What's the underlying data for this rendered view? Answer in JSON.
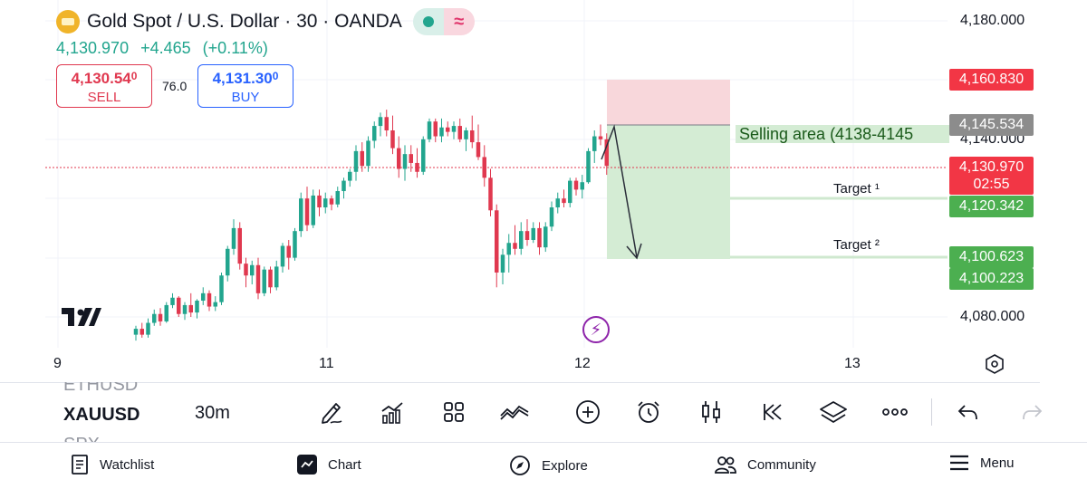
{
  "header": {
    "title": "Gold Spot / U.S. Dollar · 30 · OANDA",
    "last_price": "4,130.970",
    "change": "+4.465",
    "change_pct": "(+0.11%)",
    "market_status_icon": "market-open-dot-icon",
    "session_icon": "extended-hours-icon"
  },
  "trade": {
    "sell_price": "4,130.54",
    "sell_price_small": "0",
    "sell_label": "SELL",
    "spread": "76.0",
    "buy_price": "4,131.30",
    "buy_price_small": "0",
    "buy_label": "BUY"
  },
  "price_axis": {
    "ticks": [
      "4,180.000",
      "4,140.000",
      "4,080.000"
    ],
    "tags": {
      "stop": "4,160.830",
      "entry": "4,145.534",
      "current": "4,130.970",
      "countdown": "02:55",
      "target1": "4,120.342",
      "target2a": "4,100.623",
      "target2b": "4,100.223"
    }
  },
  "time_axis": {
    "ticks": [
      "9",
      "11",
      "12",
      "13"
    ]
  },
  "annotations": {
    "selling_area": "Selling area (4138-4145",
    "target1": "Target ¹",
    "target2": "Target ²"
  },
  "toolbar": {
    "symbol_prev": "ETHUSD",
    "symbol": "XAUUSD",
    "symbol_next": "SPX",
    "interval": "30m",
    "tools": [
      "pencil-icon",
      "indicators-icon",
      "grid-icon",
      "drawing-lines-icon",
      "add-circle-icon",
      "alarm-icon",
      "candles-icon",
      "replay-icon",
      "layers-icon",
      "more-icon",
      "undo-icon",
      "redo-icon"
    ]
  },
  "nav": {
    "watchlist": "Watchlist",
    "chart": "Chart",
    "explore": "Explore",
    "community": "Community",
    "menu": "Menu"
  },
  "colors": {
    "up": "#22a58e",
    "down": "#e0384f",
    "blue": "#2962ff",
    "tp": "#4caf50",
    "sl": "#f8d7db",
    "zone": "#d4ecd4"
  },
  "chart_data": {
    "type": "candlestick",
    "x_ticks": [
      "9",
      "11",
      "12",
      "13"
    ],
    "y_ticks": [
      4180.0,
      4140.0,
      4080.0
    ],
    "current_price": 4130.97,
    "position": {
      "side": "short",
      "entry": 4145.534,
      "stop": 4160.83,
      "target1": 4120.342,
      "target2": 4100.623
    },
    "candles": [
      [
        4074.0,
        4077.0,
        4072.0,
        4076.0
      ],
      [
        4076.0,
        4078.0,
        4073.0,
        4074.0
      ],
      [
        4074.0,
        4079.5,
        4073.0,
        4078.0
      ],
      [
        4078.0,
        4082.5,
        4077.0,
        4081.0
      ],
      [
        4081.0,
        4083.0,
        4077.0,
        4078.5
      ],
      [
        4078.5,
        4085.0,
        4078.0,
        4084.0
      ],
      [
        4084.0,
        4088.0,
        4083.0,
        4086.5
      ],
      [
        4086.5,
        4087.0,
        4080.0,
        4081.0
      ],
      [
        4081.0,
        4085.0,
        4079.0,
        4084.0
      ],
      [
        4084.0,
        4088.0,
        4080.0,
        4081.5
      ],
      [
        4081.5,
        4086.0,
        4079.5,
        4085.5
      ],
      [
        4085.5,
        4090.0,
        4084.0,
        4088.0
      ],
      [
        4088.0,
        4089.0,
        4082.0,
        4083.5
      ],
      [
        4083.5,
        4087.0,
        4082.0,
        4085.0
      ],
      [
        4085.0,
        4095.0,
        4084.0,
        4094.0
      ],
      [
        4094.0,
        4104.0,
        4092.0,
        4103.0
      ],
      [
        4103.0,
        4113.0,
        4101.0,
        4110.0
      ],
      [
        4110.0,
        4112.0,
        4096.0,
        4098.0
      ],
      [
        4098.0,
        4100.0,
        4090.0,
        4094.0
      ],
      [
        4094.0,
        4099.0,
        4091.0,
        4097.5
      ],
      [
        4097.5,
        4100.0,
        4086.0,
        4088.0
      ],
      [
        4088.0,
        4097.0,
        4087.0,
        4096.0
      ],
      [
        4096.0,
        4097.0,
        4088.0,
        4090.0
      ],
      [
        4090.0,
        4099.0,
        4089.0,
        4097.0
      ],
      [
        4097.0,
        4105.0,
        4095.0,
        4104.0
      ],
      [
        4104.0,
        4106.0,
        4096.0,
        4100.0
      ],
      [
        4100.0,
        4110.0,
        4099.0,
        4109.0
      ],
      [
        4109.0,
        4122.0,
        4107.0,
        4120.0
      ],
      [
        4120.0,
        4124.0,
        4109.0,
        4111.0
      ],
      [
        4111.0,
        4123.0,
        4110.0,
        4121.0
      ],
      [
        4121.0,
        4123.0,
        4114.0,
        4117.0
      ],
      [
        4117.0,
        4122.0,
        4115.0,
        4120.0
      ],
      [
        4120.0,
        4121.0,
        4116.0,
        4118.0
      ],
      [
        4118.0,
        4124.0,
        4117.0,
        4122.5
      ],
      [
        4122.5,
        4127.0,
        4120.0,
        4126.0
      ],
      [
        4126.0,
        4130.0,
        4124.0,
        4129.0
      ],
      [
        4129.0,
        4138.0,
        4126.0,
        4136.0
      ],
      [
        4136.0,
        4139.0,
        4129.0,
        4131.0
      ],
      [
        4131.0,
        4141.0,
        4129.0,
        4139.5
      ],
      [
        4139.5,
        4146.0,
        4137.0,
        4144.5
      ],
      [
        4144.5,
        4149.0,
        4141.0,
        4147.5
      ],
      [
        4147.5,
        4150.0,
        4141.0,
        4143.0
      ],
      [
        4143.0,
        4148.0,
        4135.0,
        4137.0
      ],
      [
        4137.0,
        4141.0,
        4127.0,
        4130.0
      ],
      [
        4130.0,
        4138.0,
        4126.0,
        4135.0
      ],
      [
        4135.0,
        4138.0,
        4129.0,
        4132.0
      ],
      [
        4132.0,
        4137.0,
        4127.0,
        4129.0
      ],
      [
        4129.0,
        4141.0,
        4128.0,
        4140.0
      ],
      [
        4140.0,
        4147.0,
        4139.0,
        4146.0
      ],
      [
        4146.0,
        4147.0,
        4139.0,
        4141.0
      ],
      [
        4141.0,
        4147.0,
        4139.0,
        4144.0
      ],
      [
        4144.0,
        4146.0,
        4141.0,
        4142.5
      ],
      [
        4142.5,
        4146.0,
        4140.0,
        4144.5
      ],
      [
        4144.5,
        4147.0,
        4139.0,
        4140.0
      ],
      [
        4140.0,
        4144.0,
        4136.0,
        4143.0
      ],
      [
        4143.0,
        4148.0,
        4137.0,
        4139.0
      ],
      [
        4139.0,
        4145.0,
        4133.0,
        4134.0
      ],
      [
        4134.0,
        4138.0,
        4124.0,
        4127.0
      ],
      [
        4127.0,
        4130.0,
        4114.0,
        4116.0
      ],
      [
        4116.0,
        4118.0,
        4090.0,
        4095.0
      ],
      [
        4095.0,
        4103.0,
        4091.0,
        4101.0
      ],
      [
        4101.0,
        4108.0,
        4095.0,
        4105.0
      ],
      [
        4105.0,
        4111.0,
        4101.0,
        4103.0
      ],
      [
        4103.0,
        4112.0,
        4101.0,
        4109.0
      ],
      [
        4109.0,
        4113.0,
        4104.0,
        4106.0
      ],
      [
        4106.0,
        4112.0,
        4105.0,
        4110.0
      ],
      [
        4110.0,
        4112.0,
        4101.0,
        4103.5
      ],
      [
        4103.5,
        4112.0,
        4102.0,
        4110.5
      ],
      [
        4110.5,
        4119.0,
        4109.0,
        4117.0
      ],
      [
        4117.0,
        4122.0,
        4115.0,
        4120.0
      ],
      [
        4120.0,
        4123.0,
        4117.0,
        4118.5
      ],
      [
        4118.5,
        4127.0,
        4117.0,
        4126.0
      ],
      [
        4126.0,
        4127.0,
        4121.0,
        4123.0
      ],
      [
        4123.0,
        4128.0,
        4120.0,
        4125.5
      ],
      [
        4125.5,
        4137.0,
        4125.0,
        4136.0
      ],
      [
        4136.0,
        4143.0,
        4132.0,
        4141.0
      ],
      [
        4141.0,
        4145.0,
        4138.0,
        4140.0
      ],
      [
        4140.0,
        4142.0,
        4128.0,
        4131.0
      ]
    ]
  }
}
